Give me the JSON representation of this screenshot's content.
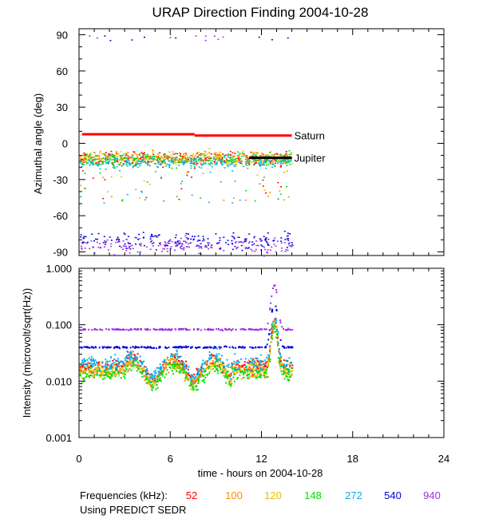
{
  "chart_data": {
    "type": "scatter",
    "title": "URAP Direction Finding  2004-10-28",
    "xlabel": "time - hours on 2004-10-28",
    "x_ticks": [
      "0",
      "6",
      "12",
      "18",
      "24"
    ],
    "xlim": [
      0,
      24
    ],
    "panels": [
      {
        "id": "azimuth",
        "ylabel": "Azimuthal angle (deg)",
        "ylim": [
          -93,
          95
        ],
        "y_ticks": [
          "90",
          "60",
          "30",
          "0",
          "-30",
          "-60",
          "-90"
        ],
        "reference_lines": [
          {
            "name": "Saturn",
            "segments": [
              {
                "x": [
                  0.2,
                  7.6
                ],
                "y": 7.5
              },
              {
                "x": [
                  7.6,
                  14.0
                ],
                "y": 6.5
              }
            ]
          },
          {
            "name": "Jupiter",
            "segments": [
              {
                "x": [
                  11.2,
                  14.0
                ],
                "y": -12
              }
            ]
          }
        ]
      },
      {
        "id": "intensity",
        "ylabel": "Intensity (microvolt/sqrt(Hz))",
        "scale": "log",
        "ylim": [
          0.001,
          1.0
        ],
        "y_ticks": [
          "1.000",
          "0.100",
          "0.010",
          "0.001"
        ]
      }
    ],
    "series": [
      {
        "name": "52",
        "unit": "kHz",
        "color": "#ff0000",
        "baseline": 0.019,
        "azimuth_center": -12
      },
      {
        "name": "100",
        "unit": "kHz",
        "color": "#ff8c00",
        "baseline": 0.016,
        "azimuth_center": -12
      },
      {
        "name": "120",
        "unit": "kHz",
        "color": "#e6c000",
        "baseline": 0.016,
        "azimuth_center": -12
      },
      {
        "name": "148",
        "unit": "kHz",
        "color": "#00e000",
        "baseline": 0.014,
        "azimuth_center": -13
      },
      {
        "name": "272",
        "unit": "kHz",
        "color": "#00b0f0",
        "baseline": 0.021,
        "azimuth_center": -15
      },
      {
        "name": "540",
        "unit": "kHz",
        "color": "#0000e0",
        "baseline": 0.041,
        "azimuth_center": -80
      },
      {
        "name": "940",
        "unit": "kHz",
        "color": "#9a30e0",
        "baseline": 0.085,
        "azimuth_center": -84
      }
    ],
    "data_span_hours": [
      0.0,
      14.0
    ],
    "legend_prefix": "Frequencies (kHz):",
    "source_note": "Using PREDICT SEDR"
  }
}
